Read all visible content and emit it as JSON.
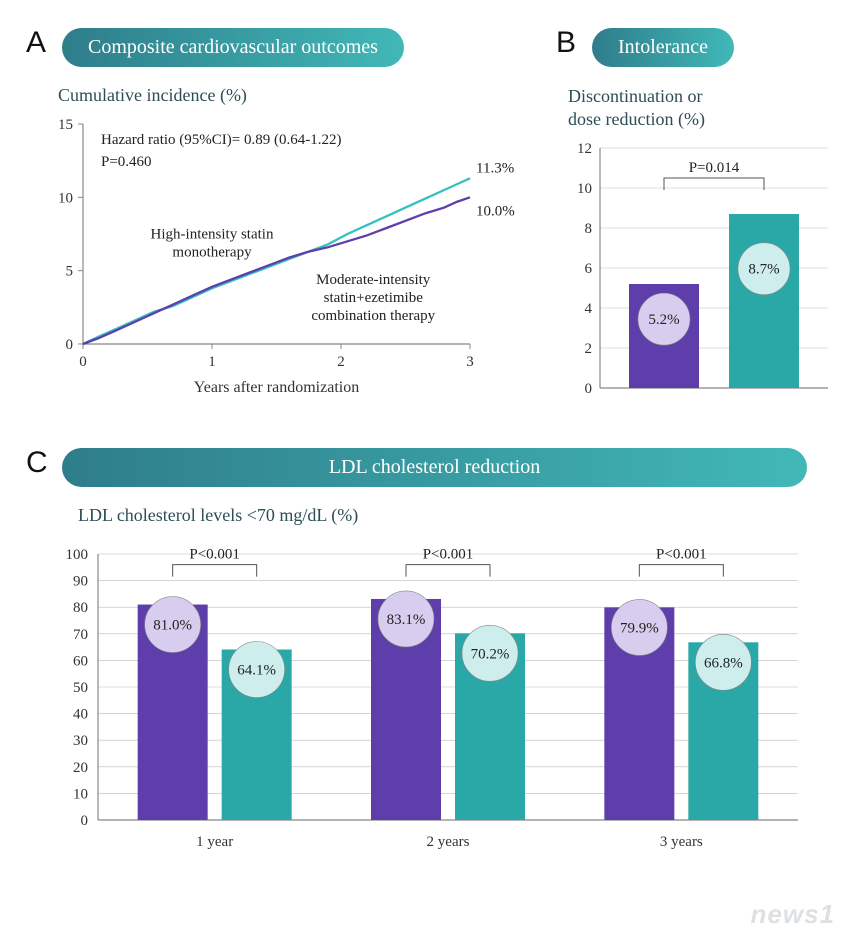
{
  "colors": {
    "purple": "#5d3eab",
    "teal": "#2aa8a8",
    "teal_light": "#33c1c1",
    "pill_grad1": "#2e7d8a",
    "pill_grad2": "#41b8b8",
    "purple_fill_light": "#d8cdee",
    "teal_fill_light": "#cdeeed",
    "axis": "#888888",
    "grid": "#bbbbbb",
    "text_dark": "#2d4d56"
  },
  "panelA": {
    "letter": "A",
    "pill": "Composite cardiovascular outcomes",
    "subhead": "Cumulative incidence (%)",
    "hazard_line1": "Hazard ratio (95%CI)= 0.89 (0.64-1.22)",
    "hazard_line2": "P=0.460",
    "xlabel": "Years after randomization",
    "xlim": [
      0,
      3
    ],
    "xtick_step": 1,
    "ylim": [
      0,
      15
    ],
    "ytick_step": 5,
    "series_high": {
      "label1": "High-intensity statin",
      "label2": "monotherapy",
      "end_label": "11.3%",
      "color_key": "teal_light",
      "points": [
        [
          0,
          0
        ],
        [
          0.12,
          0.5
        ],
        [
          0.25,
          1.0
        ],
        [
          0.4,
          1.6
        ],
        [
          0.55,
          2.2
        ],
        [
          0.7,
          2.6
        ],
        [
          0.85,
          3.2
        ],
        [
          1.0,
          3.8
        ],
        [
          1.15,
          4.3
        ],
        [
          1.3,
          4.8
        ],
        [
          1.45,
          5.3
        ],
        [
          1.6,
          5.8
        ],
        [
          1.75,
          6.3
        ],
        [
          1.9,
          6.8
        ],
        [
          2.05,
          7.5
        ],
        [
          2.2,
          8.1
        ],
        [
          2.35,
          8.7
        ],
        [
          2.5,
          9.3
        ],
        [
          2.65,
          9.9
        ],
        [
          2.8,
          10.5
        ],
        [
          2.9,
          10.9
        ],
        [
          3.0,
          11.3
        ]
      ]
    },
    "series_combo": {
      "label1": "Moderate-intensity",
      "label2": "statin+ezetimibe",
      "label3": "combination therapy",
      "end_label": "10.0%",
      "color_key": "purple",
      "points": [
        [
          0,
          0
        ],
        [
          0.12,
          0.4
        ],
        [
          0.25,
          0.9
        ],
        [
          0.4,
          1.5
        ],
        [
          0.55,
          2.1
        ],
        [
          0.7,
          2.7
        ],
        [
          0.85,
          3.3
        ],
        [
          1.0,
          3.9
        ],
        [
          1.15,
          4.4
        ],
        [
          1.3,
          4.9
        ],
        [
          1.45,
          5.4
        ],
        [
          1.6,
          5.9
        ],
        [
          1.75,
          6.3
        ],
        [
          1.9,
          6.6
        ],
        [
          2.05,
          7.0
        ],
        [
          2.2,
          7.4
        ],
        [
          2.35,
          7.9
        ],
        [
          2.5,
          8.4
        ],
        [
          2.65,
          8.9
        ],
        [
          2.8,
          9.3
        ],
        [
          2.9,
          9.7
        ],
        [
          3.0,
          10.0
        ]
      ]
    }
  },
  "panelB": {
    "letter": "B",
    "pill": "Intolerance",
    "subhead1": "Discontinuation or",
    "subhead2": "dose reduction (%)",
    "p_label": "P=0.014",
    "ylim": [
      0,
      12
    ],
    "ytick_step": 2,
    "bars": [
      {
        "value": 5.2,
        "label": "5.2%",
        "color_key": "purple",
        "badge_fill_key": "purple_fill_light"
      },
      {
        "value": 8.7,
        "label": "8.7%",
        "color_key": "teal",
        "badge_fill_key": "teal_fill_light"
      }
    ]
  },
  "panelC": {
    "letter": "C",
    "pill": "LDL cholesterol reduction",
    "subhead": "LDL cholesterol levels <70 mg/dL (%)",
    "ylim": [
      0,
      100
    ],
    "ytick_step": 10,
    "groups": [
      {
        "x_label": "1 year",
        "p": "P<0.001",
        "bars": [
          {
            "value": 81.0,
            "label": "81.0%",
            "color_key": "purple",
            "badge_fill_key": "purple_fill_light"
          },
          {
            "value": 64.1,
            "label": "64.1%",
            "color_key": "teal",
            "badge_fill_key": "teal_fill_light"
          }
        ]
      },
      {
        "x_label": "2 years",
        "p": "P<0.001",
        "bars": [
          {
            "value": 83.1,
            "label": "83.1%",
            "color_key": "purple",
            "badge_fill_key": "purple_fill_light"
          },
          {
            "value": 70.2,
            "label": "70.2%",
            "color_key": "teal",
            "badge_fill_key": "teal_fill_light"
          }
        ]
      },
      {
        "x_label": "3 years",
        "p": "P<0.001",
        "bars": [
          {
            "value": 79.9,
            "label": "79.9%",
            "color_key": "purple",
            "badge_fill_key": "purple_fill_light"
          },
          {
            "value": 66.8,
            "label": "66.8%",
            "color_key": "teal",
            "badge_fill_key": "teal_fill_light"
          }
        ]
      }
    ]
  },
  "watermark": "news1"
}
